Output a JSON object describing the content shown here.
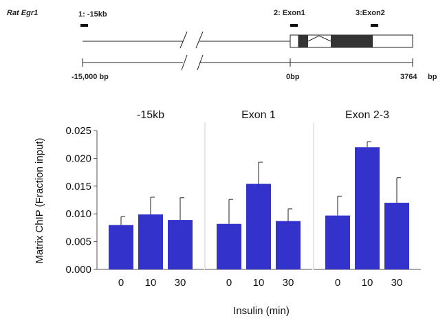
{
  "gene_map": {
    "gene_name": "Rat Egr1",
    "probes": [
      "1: -15kb",
      "2: Exon1",
      "3:Exon2"
    ],
    "scale_labels": [
      "-15,000 bp",
      "0bp",
      "3764",
      "bp"
    ]
  },
  "colors": {
    "bar": "#3333cc",
    "exon": "#333333",
    "axis": "#555555",
    "divider": "#cccccc"
  },
  "chart_data": {
    "type": "bar",
    "xlabel": "Insulin (min)",
    "ylabel": "Matrix ChIP (Fraction input)",
    "ylim": [
      0,
      0.025
    ],
    "yticks": [
      "0.000",
      "0.005",
      "0.010",
      "0.015",
      "0.020",
      "0.025"
    ],
    "categories": [
      "0",
      "10",
      "30"
    ],
    "grid": false,
    "panels": [
      {
        "title": "-15kb",
        "values": [
          0.008,
          0.0099,
          0.0089
        ],
        "errors": [
          0.0015,
          0.0031,
          0.004
        ]
      },
      {
        "title": "Exon 1",
        "values": [
          0.0082,
          0.0154,
          0.0087
        ],
        "errors": [
          0.0044,
          0.0039,
          0.0022
        ]
      },
      {
        "title": "Exon 2-3",
        "values": [
          0.0097,
          0.022,
          0.012
        ],
        "errors": [
          0.0035,
          0.001,
          0.0045
        ]
      }
    ]
  }
}
